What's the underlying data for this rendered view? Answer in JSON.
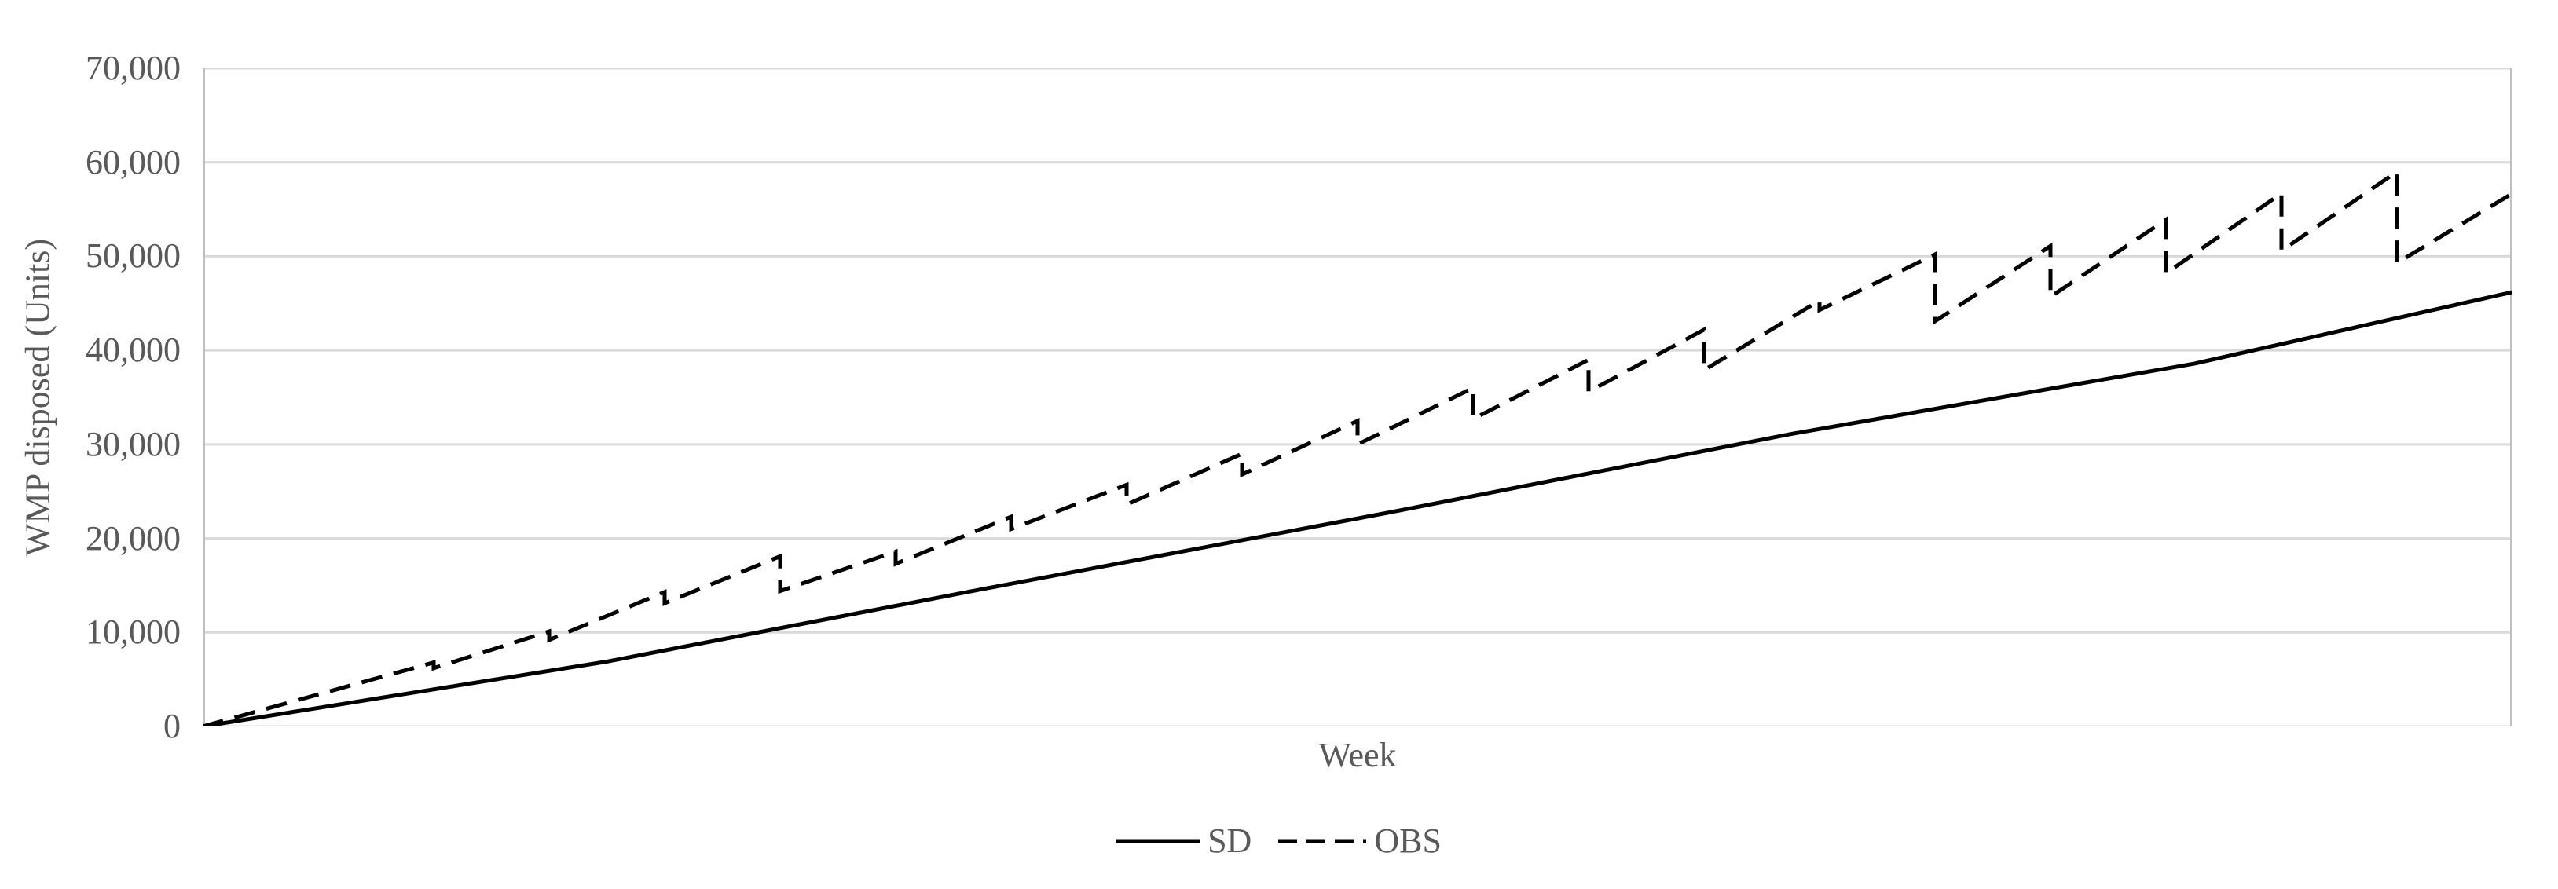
{
  "chart_data": {
    "type": "line",
    "title": "",
    "xlabel": "Week",
    "ylabel": "WMP disposed (Units)",
    "xlim": [
      0,
      80
    ],
    "x_unit": "weeks",
    "ylim": [
      0,
      70000
    ],
    "grid": "horizontal",
    "gridline_interval": 10000,
    "legend_position": "bottom-center",
    "yticks": [
      {
        "value": 0,
        "label": "0"
      },
      {
        "value": 10000,
        "label": "10,000"
      },
      {
        "value": 20000,
        "label": "20,000"
      },
      {
        "value": 30000,
        "label": "30,000"
      },
      {
        "value": 40000,
        "label": "40,000"
      },
      {
        "value": 50000,
        "label": "50,000"
      },
      {
        "value": 60000,
        "label": "60,000"
      },
      {
        "value": 70000,
        "label": "70,000"
      }
    ],
    "colors": {
      "background": "#FFFFFF",
      "grid": "#D9D9D9",
      "axis": "#BFBFBF",
      "text": "#595959",
      "series": "#000000"
    },
    "series": [
      {
        "name": "SD",
        "line_style": "solid",
        "color": "#000000",
        "points": [
          [
            0,
            0
          ],
          [
            14,
            6900
          ],
          [
            27,
            14600
          ],
          [
            41,
            22700
          ],
          [
            55,
            31100
          ],
          [
            69,
            38600
          ],
          [
            80,
            46200
          ]
        ]
      },
      {
        "name": "OBS",
        "line_style": "dashed",
        "color": "#000000",
        "points": [
          [
            0,
            0
          ],
          [
            8,
            6800
          ],
          [
            8,
            6200
          ],
          [
            12,
            10100
          ],
          [
            12,
            9200
          ],
          [
            16,
            14300
          ],
          [
            16,
            13100
          ],
          [
            20,
            18100
          ],
          [
            20,
            14400
          ],
          [
            24,
            18600
          ],
          [
            24,
            17300
          ],
          [
            28,
            22300
          ],
          [
            28,
            21000
          ],
          [
            32,
            25700
          ],
          [
            32,
            23600
          ],
          [
            36,
            29000
          ],
          [
            36,
            26800
          ],
          [
            40,
            32500
          ],
          [
            40,
            30000
          ],
          [
            44,
            36000
          ],
          [
            44,
            32700
          ],
          [
            48,
            39000
          ],
          [
            48,
            35600
          ],
          [
            52,
            42200
          ],
          [
            52,
            37900
          ],
          [
            56,
            45300
          ],
          [
            56,
            44300
          ],
          [
            60,
            50200
          ],
          [
            60,
            43100
          ],
          [
            64,
            51100
          ],
          [
            64,
            45700
          ],
          [
            68,
            53900
          ],
          [
            68,
            48200
          ],
          [
            72,
            56700
          ],
          [
            72,
            50600
          ],
          [
            76,
            59000
          ],
          [
            76,
            49300
          ],
          [
            80,
            56700
          ]
        ]
      }
    ]
  }
}
